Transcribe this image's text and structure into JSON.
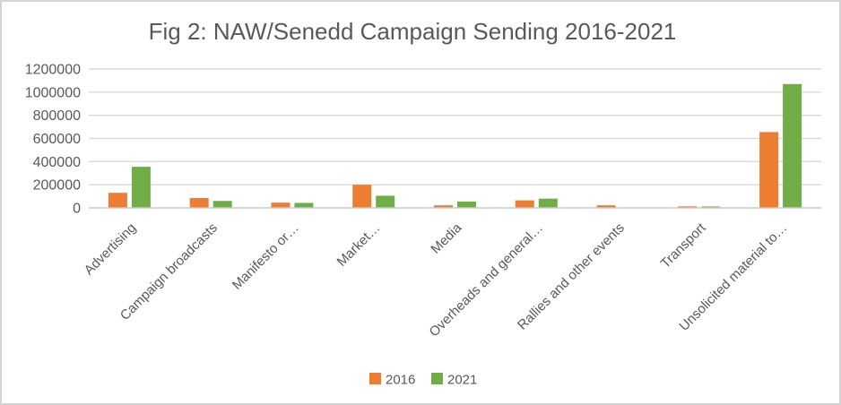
{
  "frame": {
    "background": "#ffffff",
    "border_color": "#d4d4d4"
  },
  "chart_data": {
    "type": "bar",
    "title": "Fig 2: NAW/Senedd Campaign Sending 2016-2021",
    "categories": [
      "Advertising",
      "Campaign broadcasts",
      "Manifesto or…",
      "Market…",
      "Media",
      "Overheads and general…",
      "Rallies and other events",
      "Transport",
      "Unsolicited material to…"
    ],
    "series": [
      {
        "name": "2016",
        "color": "#ed7d31",
        "values": [
          130000,
          85000,
          45000,
          200000,
          22000,
          65000,
          22000,
          13000,
          655000
        ]
      },
      {
        "name": "2021",
        "color": "#70ad47",
        "values": [
          355000,
          60000,
          43000,
          105000,
          55000,
          80000,
          0,
          12000,
          1070000
        ]
      }
    ],
    "xlabel": "",
    "ylabel": "",
    "ylim": [
      0,
      1200000
    ],
    "ytick_interval": 200000,
    "ytick_labels": [
      "0",
      "200000",
      "400000",
      "600000",
      "800000",
      "1000000",
      "1200000"
    ],
    "grid": true,
    "legend_position": "bottom",
    "colors": {
      "text": "#595959",
      "gridline": "#d9d9d9",
      "axis_line": "#c9c9c9"
    }
  }
}
